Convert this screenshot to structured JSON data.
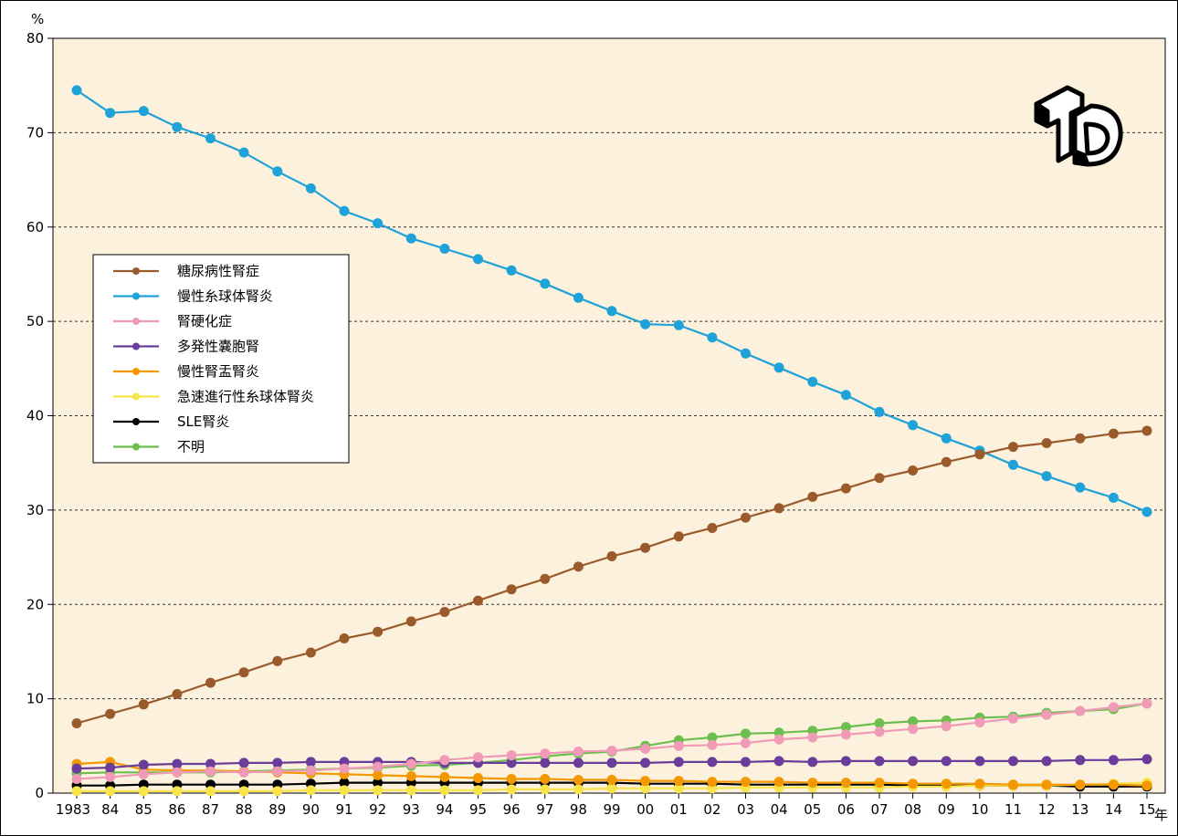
{
  "chart_data": {
    "type": "line",
    "y_unit": "%",
    "x_unit": "年",
    "ylim": [
      0,
      80
    ],
    "yticks": [
      0,
      10,
      20,
      30,
      40,
      50,
      60,
      70,
      80
    ],
    "grid": "horizontal-dashed",
    "legend_position": "left",
    "background": "#fbf1dc",
    "categories": [
      "1983",
      "84",
      "85",
      "86",
      "87",
      "88",
      "89",
      "90",
      "91",
      "92",
      "93",
      "94",
      "95",
      "96",
      "97",
      "98",
      "99",
      "00",
      "01",
      "02",
      "03",
      "04",
      "05",
      "06",
      "07",
      "08",
      "09",
      "10",
      "11",
      "12",
      "13",
      "14",
      "15"
    ],
    "series": [
      {
        "name": "糖尿病性腎症",
        "color": "#9a5a2c",
        "values": [
          7.4,
          8.4,
          9.4,
          10.5,
          11.7,
          12.8,
          14.0,
          14.9,
          16.4,
          17.1,
          18.2,
          19.2,
          20.4,
          21.6,
          22.7,
          24.0,
          25.1,
          26.0,
          27.2,
          28.1,
          29.2,
          30.2,
          31.4,
          32.3,
          33.4,
          34.2,
          35.1,
          35.9,
          36.7,
          37.1,
          37.6,
          38.1,
          38.4
        ]
      },
      {
        "name": "慢性糸球体腎炎",
        "color": "#1ea2d8",
        "values": [
          74.5,
          72.1,
          72.3,
          70.6,
          69.4,
          67.9,
          65.9,
          64.1,
          61.7,
          60.4,
          58.8,
          57.7,
          56.6,
          55.4,
          54.0,
          52.5,
          51.1,
          49.7,
          49.6,
          48.3,
          46.6,
          45.1,
          43.6,
          42.2,
          40.4,
          39.0,
          37.6,
          36.3,
          34.8,
          33.6,
          32.4,
          31.3,
          29.8
        ]
      },
      {
        "name": "腎硬化症",
        "color": "#f09ab8",
        "values": [
          1.5,
          1.7,
          2.0,
          2.2,
          2.3,
          2.2,
          2.3,
          2.4,
          2.6,
          2.8,
          3.1,
          3.5,
          3.8,
          4.0,
          4.2,
          4.4,
          4.5,
          4.7,
          5.0,
          5.1,
          5.3,
          5.7,
          5.9,
          6.2,
          6.5,
          6.8,
          7.1,
          7.5,
          7.9,
          8.3,
          8.7,
          9.1,
          9.5
        ]
      },
      {
        "name": "多発性嚢胞腎",
        "color": "#6a3d9a",
        "values": [
          2.6,
          2.7,
          3.0,
          3.1,
          3.1,
          3.2,
          3.2,
          3.3,
          3.3,
          3.3,
          3.3,
          3.2,
          3.2,
          3.2,
          3.2,
          3.2,
          3.2,
          3.2,
          3.3,
          3.3,
          3.3,
          3.4,
          3.3,
          3.4,
          3.4,
          3.4,
          3.4,
          3.4,
          3.4,
          3.4,
          3.5,
          3.5,
          3.6
        ]
      },
      {
        "name": "慢性腎盂腎炎",
        "color": "#f39800",
        "values": [
          3.1,
          3.3,
          2.5,
          2.4,
          2.4,
          2.3,
          2.2,
          2.1,
          2.0,
          1.9,
          1.8,
          1.7,
          1.6,
          1.5,
          1.5,
          1.4,
          1.4,
          1.3,
          1.3,
          1.2,
          1.2,
          1.2,
          1.1,
          1.1,
          1.1,
          1.0,
          1.0,
          1.0,
          0.9,
          0.9,
          0.9,
          0.9,
          0.8
        ]
      },
      {
        "name": "急速進行性糸球体腎炎",
        "color": "#f7e34a",
        "values": [
          0.2,
          0.2,
          0.2,
          0.2,
          0.2,
          0.2,
          0.2,
          0.3,
          0.3,
          0.3,
          0.3,
          0.3,
          0.3,
          0.4,
          0.4,
          0.4,
          0.5,
          0.5,
          0.5,
          0.5,
          0.6,
          0.6,
          0.6,
          0.6,
          0.6,
          0.7,
          0.7,
          0.8,
          0.8,
          0.8,
          0.9,
          1.0,
          1.1
        ]
      },
      {
        "name": "SLE腎炎",
        "color": "#000000",
        "values": [
          0.8,
          0.8,
          0.9,
          0.9,
          0.9,
          0.9,
          0.9,
          1.0,
          1.1,
          1.1,
          1.1,
          1.1,
          1.1,
          1.1,
          1.1,
          1.1,
          1.1,
          1.0,
          1.0,
          1.0,
          0.9,
          0.9,
          0.9,
          0.9,
          0.9,
          0.8,
          0.8,
          0.8,
          0.8,
          0.8,
          0.7,
          0.7,
          0.7
        ]
      },
      {
        "name": "不明",
        "color": "#6cbf4e",
        "values": [
          2.1,
          2.2,
          2.2,
          2.2,
          2.2,
          2.3,
          2.4,
          2.5,
          2.6,
          2.7,
          2.9,
          3.0,
          3.2,
          3.5,
          3.9,
          4.2,
          4.4,
          5.0,
          5.6,
          5.9,
          6.3,
          6.4,
          6.6,
          7.0,
          7.4,
          7.6,
          7.7,
          8.0,
          8.1,
          8.5,
          8.7,
          8.9,
          9.5
        ]
      }
    ]
  },
  "logo": {
    "name": "TO-logo"
  }
}
